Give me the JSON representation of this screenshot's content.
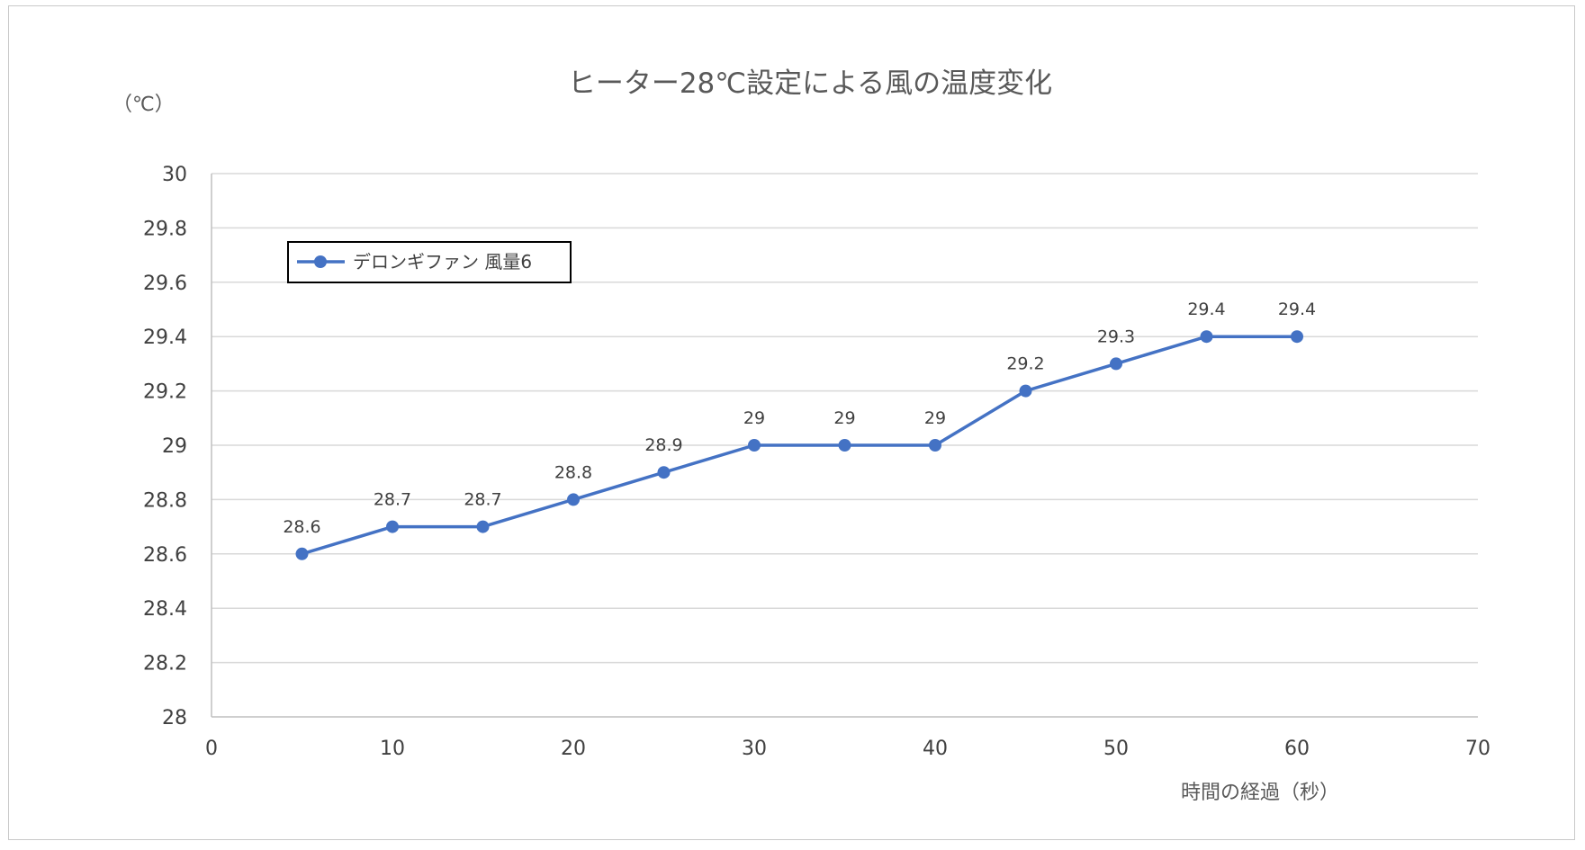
{
  "chart_data": {
    "type": "line",
    "title": "ヒーター28℃設定による風の温度変化",
    "xlabel": "時間の経過（秒）",
    "ylabel": "（℃）",
    "xlim": [
      0,
      70
    ],
    "ylim": [
      28,
      30
    ],
    "x_ticks": [
      "0",
      "10",
      "20",
      "30",
      "40",
      "50",
      "60",
      "70"
    ],
    "y_ticks": [
      "28",
      "28.2",
      "28.4",
      "28.6",
      "28.8",
      "29",
      "29.2",
      "29.4",
      "29.6",
      "29.8",
      "30"
    ],
    "grid": true,
    "legend_position": "top-left",
    "series": [
      {
        "name": "デロンギファン 風量6",
        "color": "#4472C4",
        "x": [
          5,
          10,
          15,
          20,
          25,
          30,
          35,
          40,
          45,
          50,
          55,
          60
        ],
        "values": [
          28.6,
          28.7,
          28.7,
          28.8,
          28.9,
          29,
          29,
          29,
          29.2,
          29.3,
          29.4,
          29.4
        ],
        "data_labels": [
          "28.6",
          "28.7",
          "28.7",
          "28.8",
          "28.9",
          "29",
          "29",
          "29",
          "29.2",
          "29.3",
          "29.4",
          "29.4"
        ]
      }
    ]
  }
}
